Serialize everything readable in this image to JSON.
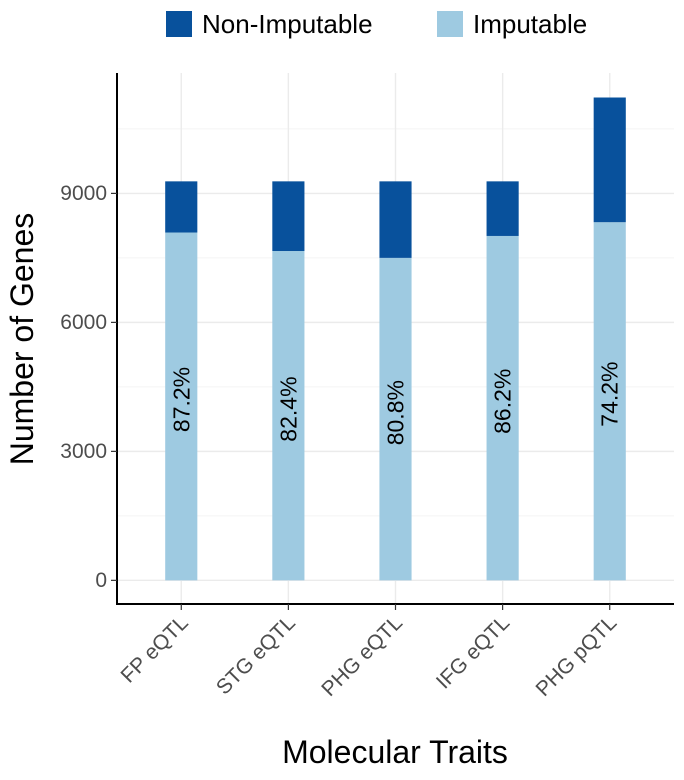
{
  "chart_data": {
    "type": "bar",
    "stacked": true,
    "categories": [
      "FP eQTL",
      "STG eQTL",
      "PHG eQTL",
      "IFG eQTL",
      "PHG pQTL"
    ],
    "series": [
      {
        "name": "Imputable",
        "values": [
          8090,
          7660,
          7500,
          8010,
          8330
        ],
        "color": "#9ecae1"
      },
      {
        "name": "Non-Imputable",
        "values": [
          1190,
          1620,
          1780,
          1270,
          2900
        ],
        "color": "#08519c"
      }
    ],
    "bar_labels": [
      "87.2%",
      "82.4%",
      "80.8%",
      "86.2%",
      "74.2%"
    ],
    "xlabel": "Molecular Traits",
    "ylabel": "Number of Genes",
    "yticks": [
      0,
      3000,
      6000,
      9000
    ],
    "ylim": [
      -550,
      11800
    ],
    "grid": true,
    "legend_position": "top"
  },
  "legend": {
    "items": [
      {
        "label": "Non-Imputable",
        "color": "#08519c"
      },
      {
        "label": "Imputable",
        "color": "#9ecae1"
      }
    ]
  }
}
